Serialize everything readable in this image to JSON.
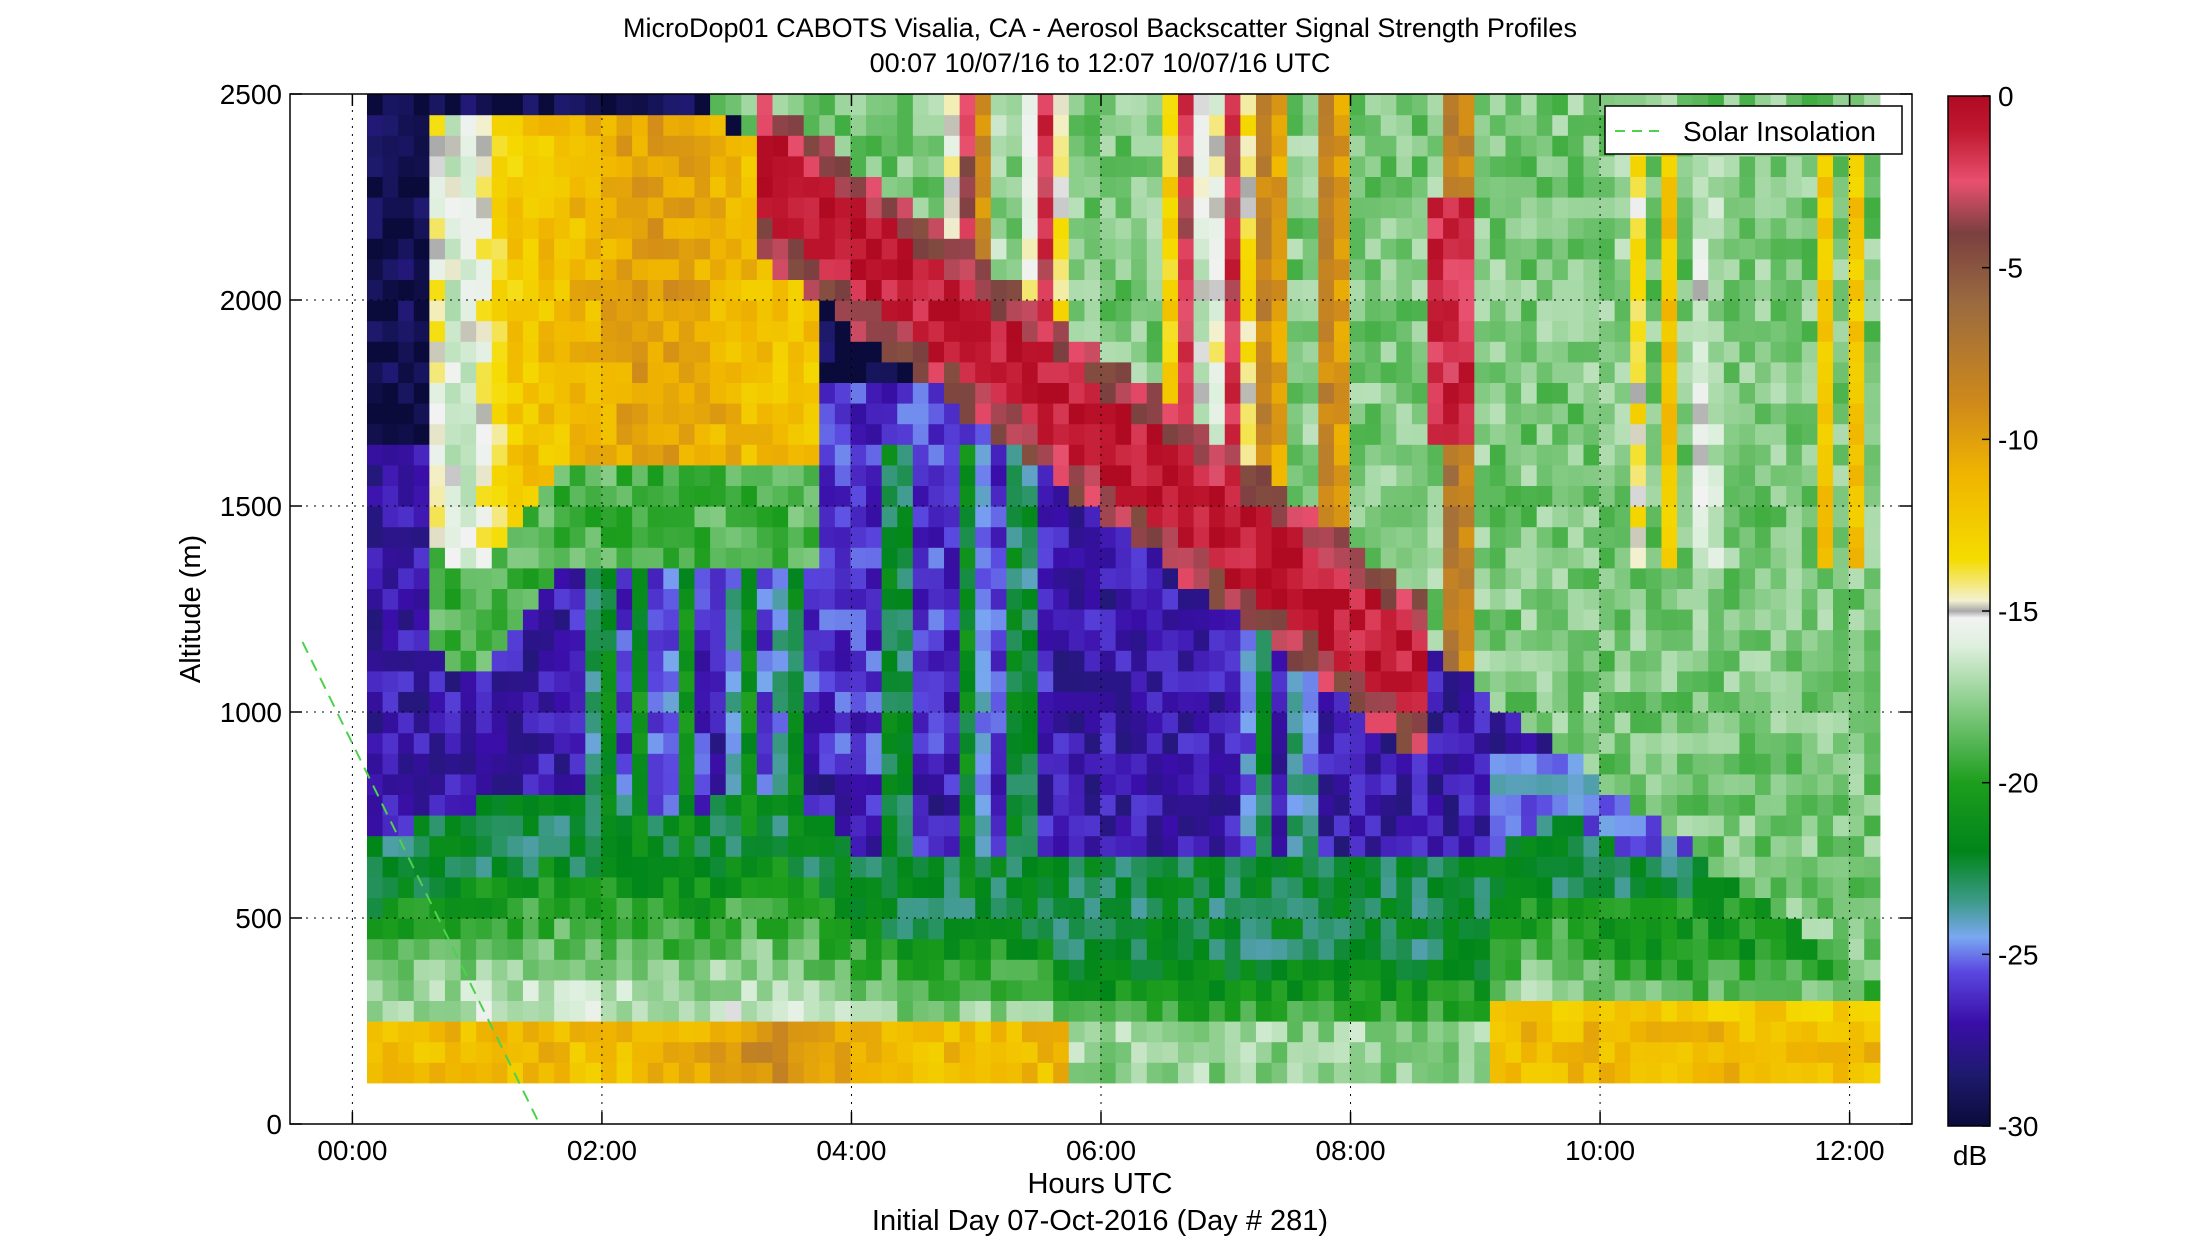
{
  "chart_data": {
    "type": "heatmap",
    "title": "MicroDop01 CABOTS Visalia, CA - Aerosol Backscatter Signal Strength Profiles",
    "subtitle": "00:07 10/07/16 to 12:07 10/07/16  UTC",
    "xlabel": "Hours UTC",
    "footer": "Initial Day 07-Oct-2016 (Day # 281)",
    "ylabel": "Altitude (m)",
    "xlim": [
      -0.5,
      12.5
    ],
    "ylim": [
      0,
      2500
    ],
    "x_ticks": [
      {
        "value": 0,
        "label": "00:00"
      },
      {
        "value": 2,
        "label": "02:00"
      },
      {
        "value": 4,
        "label": "04:00"
      },
      {
        "value": 6,
        "label": "06:00"
      },
      {
        "value": 8,
        "label": "08:00"
      },
      {
        "value": 10,
        "label": "10:00"
      },
      {
        "value": 12,
        "label": "12:00"
      }
    ],
    "y_ticks": [
      {
        "value": 0,
        "label": "0"
      },
      {
        "value": 500,
        "label": "500"
      },
      {
        "value": 1000,
        "label": "1000"
      },
      {
        "value": 1500,
        "label": "1500"
      },
      {
        "value": 2000,
        "label": "2000"
      },
      {
        "value": 2500,
        "label": "2500"
      }
    ],
    "grid": "dotted",
    "colorbar": {
      "label": "dB",
      "range": [
        -30,
        0
      ],
      "ticks": [
        {
          "value": 0,
          "label": "0"
        },
        {
          "value": -5,
          "label": "-5"
        },
        {
          "value": -10,
          "label": "-10"
        },
        {
          "value": -15,
          "label": "-15"
        },
        {
          "value": -20,
          "label": "-20"
        },
        {
          "value": -25,
          "label": "-25"
        },
        {
          "value": -30,
          "label": "-30"
        }
      ],
      "stops": [
        {
          "v": -30,
          "color": "#0b0b3b"
        },
        {
          "v": -28.5,
          "color": "#1e1a6e"
        },
        {
          "v": -27,
          "color": "#3a0ea8"
        },
        {
          "v": -25.5,
          "color": "#5a48e0"
        },
        {
          "v": -24.5,
          "color": "#7aa8f2"
        },
        {
          "v": -23.5,
          "color": "#3f9b8c"
        },
        {
          "v": -22,
          "color": "#00851a"
        },
        {
          "v": -20,
          "color": "#1d9e1d"
        },
        {
          "v": -18,
          "color": "#7cc77c"
        },
        {
          "v": -16,
          "color": "#dff0df"
        },
        {
          "v": -15.2,
          "color": "#f2f2f2"
        },
        {
          "v": -15,
          "color": "#a8a8a8"
        },
        {
          "v": -14.7,
          "color": "#f3f0d0"
        },
        {
          "v": -13.5,
          "color": "#f5dc00"
        },
        {
          "v": -11,
          "color": "#f0b400"
        },
        {
          "v": -9,
          "color": "#d08a1a"
        },
        {
          "v": -6,
          "color": "#9a6a40"
        },
        {
          "v": -4,
          "color": "#7a4040"
        },
        {
          "v": -2.5,
          "color": "#e8506e"
        },
        {
          "v": -1,
          "color": "#c01830"
        },
        {
          "v": 0,
          "color": "#b00a22"
        }
      ]
    },
    "grid_cells": {
      "x_start": 0.117,
      "x_step": 0.125,
      "columns": 97,
      "y_start": 100,
      "y_step": 50,
      "rows": 48
    },
    "series": [
      {
        "name": "Solar Insolation",
        "style": "dashed",
        "color": "#4cd24c",
        "x": [
          -0.4,
          1.5
        ],
        "y": [
          1170,
          0
        ]
      }
    ],
    "legend": {
      "placement": "top-right"
    }
  }
}
